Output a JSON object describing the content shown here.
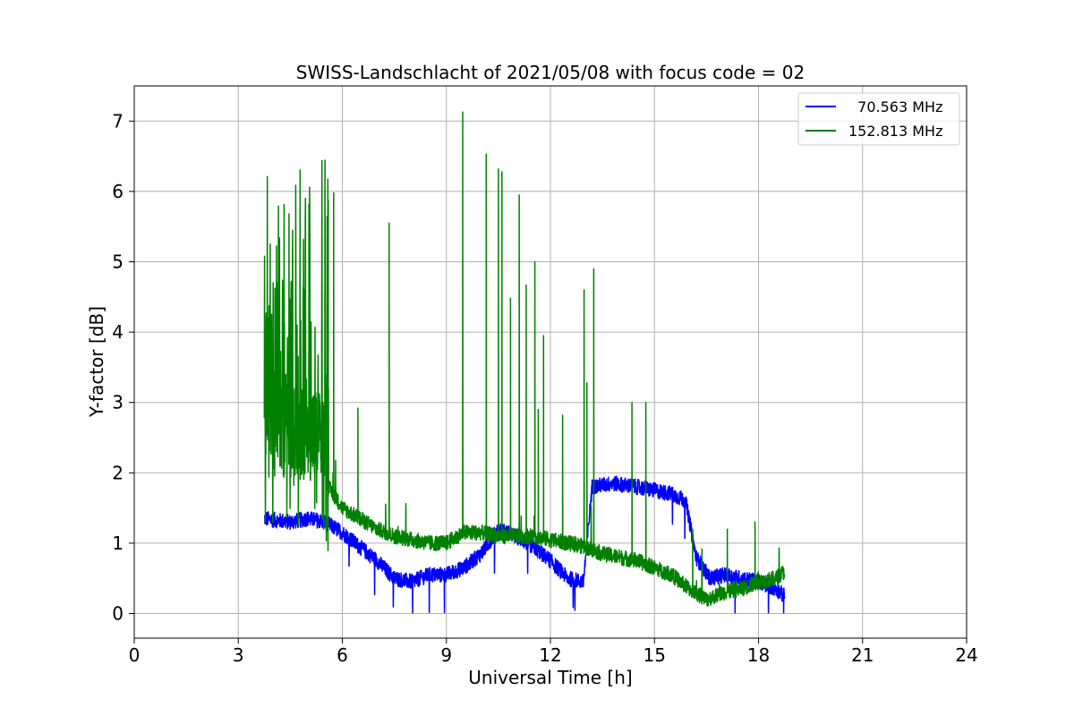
{
  "chart_data": {
    "type": "line",
    "title": "SWISS-Landschlacht of 2021/05/08 with focus code = 02",
    "xlabel": "Universal Time [h]",
    "ylabel": "Y-factor [dB]",
    "xlim": [
      0,
      24
    ],
    "ylim": [
      -0.35,
      7.5
    ],
    "xticks": [
      0,
      3,
      6,
      9,
      12,
      15,
      18,
      21,
      24
    ],
    "yticks": [
      0,
      1,
      2,
      3,
      4,
      5,
      6,
      7
    ],
    "grid": true,
    "legend_position": "top-right",
    "series": [
      {
        "name": "  70.563 MHz",
        "color": "#0000ff",
        "approx_profile": [
          [
            3.75,
            1.35
          ],
          [
            4.5,
            1.3
          ],
          [
            5.0,
            1.35
          ],
          [
            5.5,
            1.3
          ],
          [
            6.0,
            1.15
          ],
          [
            6.5,
            0.95
          ],
          [
            7.0,
            0.75
          ],
          [
            7.5,
            0.5
          ],
          [
            8.0,
            0.45
          ],
          [
            8.5,
            0.55
          ],
          [
            9.0,
            0.55
          ],
          [
            9.5,
            0.65
          ],
          [
            10.0,
            0.85
          ],
          [
            10.5,
            1.2
          ],
          [
            11.0,
            1.1
          ],
          [
            11.5,
            0.95
          ],
          [
            12.0,
            0.75
          ],
          [
            12.5,
            0.5
          ],
          [
            12.95,
            0.45
          ],
          [
            13.2,
            1.8
          ],
          [
            13.8,
            1.85
          ],
          [
            14.5,
            1.8
          ],
          [
            15.0,
            1.75
          ],
          [
            15.5,
            1.7
          ],
          [
            15.9,
            1.6
          ],
          [
            16.2,
            0.8
          ],
          [
            16.6,
            0.5
          ],
          [
            17.0,
            0.55
          ],
          [
            17.5,
            0.5
          ],
          [
            18.0,
            0.45
          ],
          [
            18.5,
            0.35
          ],
          [
            18.75,
            0.25
          ]
        ]
      },
      {
        "name": "152.813 MHz",
        "color": "#008000",
        "approx_profile": [
          [
            3.75,
            2.3
          ],
          [
            4.5,
            2.3
          ],
          [
            5.0,
            2.3
          ],
          [
            5.5,
            2.2
          ],
          [
            5.6,
            1.8
          ],
          [
            6.0,
            1.5
          ],
          [
            6.5,
            1.35
          ],
          [
            7.0,
            1.2
          ],
          [
            7.5,
            1.1
          ],
          [
            8.0,
            1.05
          ],
          [
            8.5,
            1.0
          ],
          [
            9.0,
            1.0
          ],
          [
            9.5,
            1.15
          ],
          [
            10.0,
            1.15
          ],
          [
            10.5,
            1.1
          ],
          [
            11.0,
            1.1
          ],
          [
            11.5,
            1.1
          ],
          [
            12.0,
            1.05
          ],
          [
            12.5,
            1.0
          ],
          [
            13.0,
            0.95
          ],
          [
            13.5,
            0.85
          ],
          [
            14.0,
            0.8
          ],
          [
            14.5,
            0.75
          ],
          [
            15.0,
            0.65
          ],
          [
            15.5,
            0.55
          ],
          [
            16.0,
            0.35
          ],
          [
            16.5,
            0.2
          ],
          [
            17.0,
            0.3
          ],
          [
            17.5,
            0.35
          ],
          [
            18.0,
            0.45
          ],
          [
            18.5,
            0.5
          ],
          [
            18.75,
            0.6
          ]
        ],
        "spikes": [
          [
            5.6,
            3.2
          ],
          [
            5.75,
            5.98
          ],
          [
            6.45,
            2.92
          ],
          [
            7.35,
            5.55
          ],
          [
            9.47,
            7.13
          ],
          [
            10.15,
            6.53
          ],
          [
            10.5,
            6.32
          ],
          [
            10.6,
            6.28
          ],
          [
            10.85,
            4.48
          ],
          [
            11.1,
            5.95
          ],
          [
            11.3,
            4.67
          ],
          [
            11.55,
            5.0
          ],
          [
            11.65,
            2.9
          ],
          [
            11.8,
            3.95
          ],
          [
            12.35,
            2.82
          ],
          [
            12.97,
            4.6
          ],
          [
            13.05,
            3.28
          ],
          [
            13.25,
            4.9
          ],
          [
            14.35,
            3.0
          ],
          [
            14.75,
            3.0
          ],
          [
            16.1,
            1.2
          ],
          [
            17.1,
            1.2
          ],
          [
            17.9,
            1.3
          ]
        ]
      }
    ]
  }
}
